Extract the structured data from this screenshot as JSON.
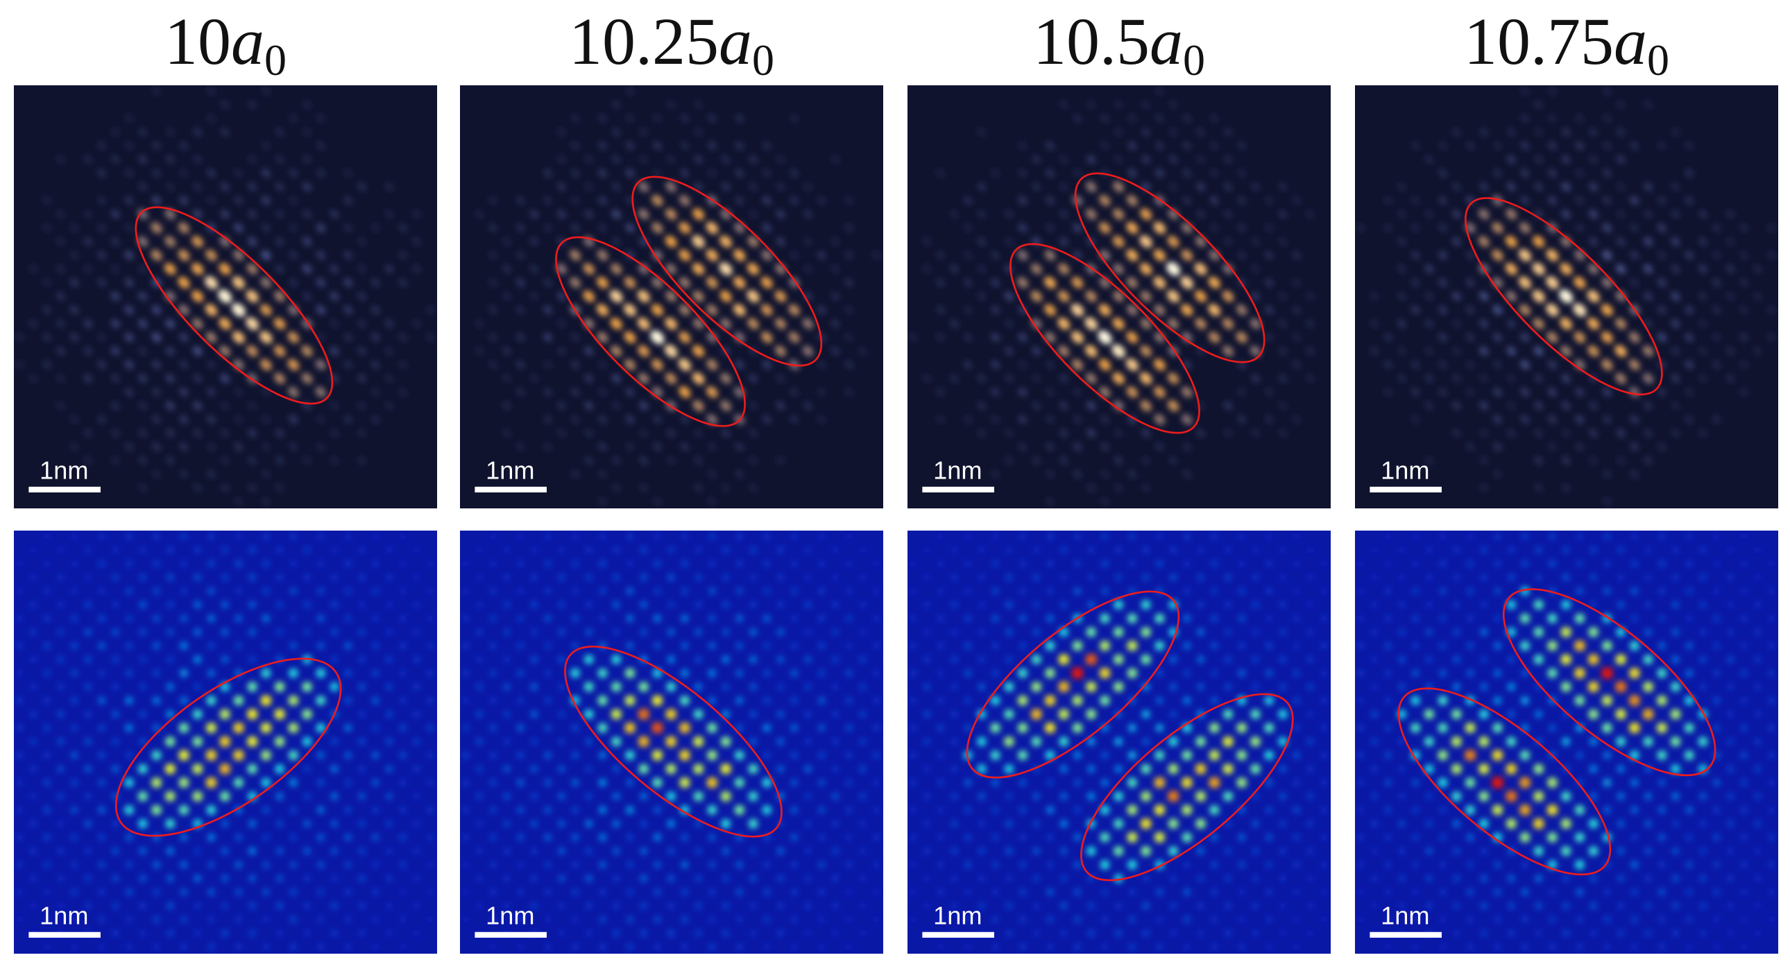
{
  "panels": [
    {
      "title": {
        "number": "10",
        "variable": "a",
        "subscript": "0"
      },
      "top": {
        "scale_label": "1nm"
      },
      "bottom": {
        "scale_label": "1nm"
      }
    },
    {
      "title": {
        "number": "10.25",
        "variable": "a",
        "subscript": "0"
      },
      "top": {
        "scale_label": "1nm"
      },
      "bottom": {
        "scale_label": "1nm"
      }
    },
    {
      "title": {
        "number": "10.5",
        "variable": "a",
        "subscript": "0"
      },
      "top": {
        "scale_label": "1nm"
      },
      "bottom": {
        "scale_label": "1nm"
      }
    },
    {
      "title": {
        "number": "10.75",
        "variable": "a",
        "subscript": "0"
      },
      "top": {
        "scale_label": "1nm"
      },
      "bottom": {
        "scale_label": "1nm"
      }
    }
  ]
}
